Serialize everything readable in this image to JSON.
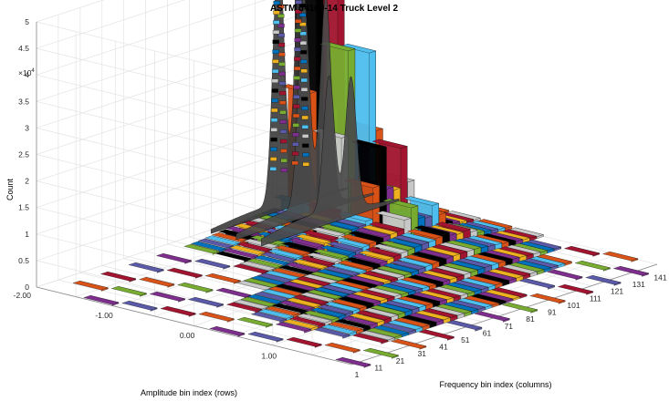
{
  "chart_data": {
    "type": "bar3",
    "title": "ASTM d4169-14 Truck Level 2",
    "zlabel": "Count",
    "xlabel": "Frequency bin index (columns)",
    "ylabel": "Amplitude bin index (rows)",
    "z_exponent_label": "×10",
    "z_exponent": "4",
    "z_ticks": [
      "0",
      "0.5",
      "1",
      "1.5",
      "2",
      "2.5",
      "3",
      "3.5",
      "4",
      "4.5",
      "5"
    ],
    "x_ticks": [
      "1",
      "11",
      "21",
      "31",
      "41",
      "51",
      "61",
      "71",
      "81",
      "91",
      "101",
      "111",
      "121",
      "131",
      "141"
    ],
    "y_ticks": [
      "-2.00",
      "-1.00",
      "0.00",
      "1.00"
    ],
    "zlim": [
      0,
      50000
    ],
    "grid": true,
    "peaks": [
      {
        "frequency_bin": 108,
        "amplitude_bin": "-2.00",
        "count": 48000
      },
      {
        "frequency_bin": 118,
        "amplitude_bin": "-2.00",
        "count": 46500
      }
    ],
    "colors": [
      "#7e2f8e",
      "#4dbeee",
      "#77ac30",
      "#edb120",
      "#d95319",
      "#0072bd",
      "#a2142f",
      "#000000",
      "#5a5aa8",
      "#c8c8c8"
    ]
  }
}
